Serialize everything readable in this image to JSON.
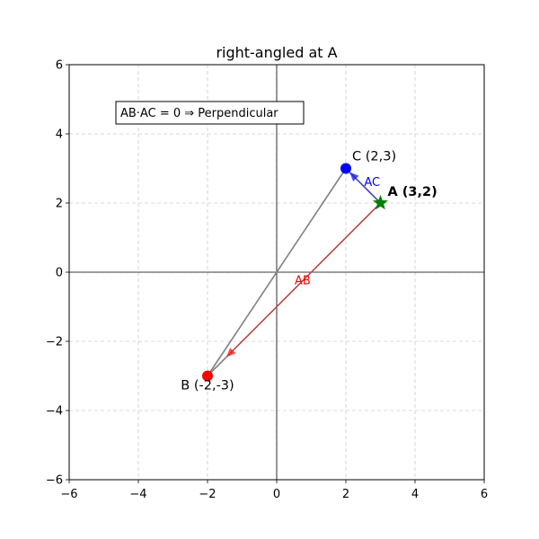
{
  "chart_data": {
    "type": "scatter",
    "title": "right-angled at A",
    "xlabel": "",
    "ylabel": "",
    "xlim": [
      -6,
      6
    ],
    "ylim": [
      -6,
      6
    ],
    "grid": true,
    "x_ticks": [
      -6,
      -4,
      -2,
      0,
      2,
      4,
      6
    ],
    "y_ticks": [
      -6,
      -4,
      -2,
      0,
      2,
      4,
      6
    ],
    "x_tick_labels": [
      "−6",
      "−4",
      "−2",
      "0",
      "2",
      "4",
      "6"
    ],
    "y_tick_labels": [
      "−6",
      "−4",
      "−2",
      "0",
      "2",
      "4",
      "6"
    ],
    "points": [
      {
        "id": "A",
        "x": 3,
        "y": 2,
        "label": "A (3,2)",
        "color": "#008000",
        "marker": "star",
        "bold": true
      },
      {
        "id": "B",
        "x": -2,
        "y": -3,
        "label": "B (-2,-3)",
        "color": "#ff0000",
        "marker": "circle",
        "bold": false
      },
      {
        "id": "C",
        "x": 2,
        "y": 3,
        "label": "C (2,3)",
        "color": "#0000ff",
        "marker": "circle",
        "bold": false
      }
    ],
    "segments": [
      {
        "from": "A",
        "to": "B",
        "color": "#808080"
      },
      {
        "from": "A",
        "to": "C",
        "color": "#808080"
      },
      {
        "from": "B",
        "to": "C",
        "color": "#808080"
      }
    ],
    "vectors": [
      {
        "from": "A",
        "to": "B",
        "label": "AB",
        "color": "#ff0000"
      },
      {
        "from": "A",
        "to": "C",
        "label": "AC",
        "color": "#0000ff"
      }
    ],
    "annotation": "AB·AC = 0  ⇒  Perpendicular"
  }
}
